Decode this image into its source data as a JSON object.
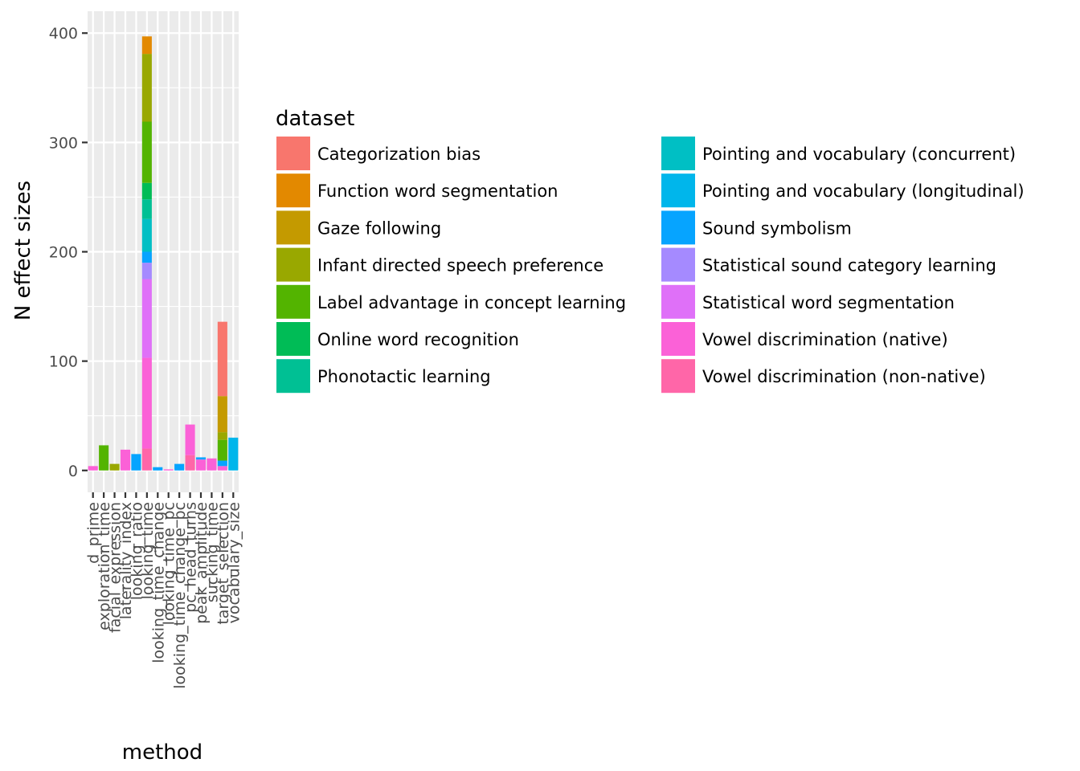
{
  "chart_data": {
    "type": "bar",
    "stacked": true,
    "xlabel": "method",
    "ylabel": "N effect sizes",
    "ylim": [
      -20,
      420
    ],
    "yticks": [
      0,
      100,
      200,
      300,
      400
    ],
    "grid": true,
    "legend_title": "dataset",
    "legend_position": "right",
    "categories": [
      "d_prime",
      "exploration_time",
      "facial_expression",
      "laterality_index",
      "looking_ratio",
      "looking_time",
      "looking_time_change",
      "looking_time_pc",
      "looking_time_change_pc",
      "pc_head_turns",
      "peak_amplitude",
      "sucking_time",
      "target_selection",
      "vocabulary_size"
    ],
    "series": [
      {
        "name": "Categorization bias",
        "color": "#F8766D",
        "values": [
          0,
          0,
          0,
          0,
          0,
          0,
          0,
          0,
          0,
          0,
          0,
          0,
          68,
          0
        ]
      },
      {
        "name": "Function word segmentation",
        "color": "#E38900",
        "values": [
          0,
          0,
          0,
          0,
          0,
          16,
          0,
          0,
          0,
          0,
          0,
          0,
          0,
          0
        ]
      },
      {
        "name": "Gaze following",
        "color": "#C49A00",
        "values": [
          0,
          0,
          0,
          0,
          0,
          0,
          0,
          0,
          0,
          0,
          0,
          0,
          33,
          0
        ]
      },
      {
        "name": "Infant directed speech preference",
        "color": "#99A800",
        "values": [
          0,
          0,
          6,
          0,
          0,
          62,
          0,
          0,
          0,
          0,
          0,
          0,
          7,
          0
        ]
      },
      {
        "name": "Label advantage in concept learning",
        "color": "#53B400",
        "values": [
          0,
          23,
          0,
          0,
          0,
          56,
          0,
          0,
          0,
          0,
          0,
          0,
          19,
          0
        ]
      },
      {
        "name": "Online word recognition",
        "color": "#00BC56",
        "values": [
          0,
          0,
          0,
          0,
          0,
          15,
          0,
          0,
          0,
          0,
          0,
          0,
          0,
          0
        ]
      },
      {
        "name": "Phonotactic learning",
        "color": "#00C094",
        "values": [
          0,
          0,
          0,
          0,
          0,
          18,
          0,
          0,
          0,
          0,
          0,
          0,
          0,
          0
        ]
      },
      {
        "name": "Pointing and vocabulary (concurrent)",
        "color": "#00BFC4",
        "values": [
          0,
          0,
          0,
          0,
          0,
          30,
          0,
          0,
          0,
          0,
          0,
          0,
          0,
          0
        ]
      },
      {
        "name": "Pointing and vocabulary (longitudinal)",
        "color": "#00B6EB",
        "values": [
          0,
          0,
          0,
          0,
          0,
          0,
          0,
          0,
          0,
          0,
          0,
          0,
          0,
          30
        ]
      },
      {
        "name": "Sound symbolism",
        "color": "#06A4FF",
        "values": [
          0,
          0,
          0,
          0,
          15,
          10,
          3,
          0,
          6,
          0,
          2,
          0,
          5,
          0
        ]
      },
      {
        "name": "Statistical sound category learning",
        "color": "#A58AFF",
        "values": [
          0,
          0,
          0,
          0,
          0,
          15,
          0,
          0,
          0,
          0,
          0,
          0,
          0,
          0
        ]
      },
      {
        "name": "Statistical word segmentation",
        "color": "#DF70F8",
        "values": [
          0,
          0,
          0,
          0,
          0,
          72,
          0,
          0,
          0,
          0,
          0,
          0,
          0,
          0
        ]
      },
      {
        "name": "Vowel discrimination (native)",
        "color": "#FB61D7",
        "values": [
          4,
          0,
          0,
          19,
          0,
          83,
          0,
          1,
          0,
          28,
          10,
          11,
          4,
          0
        ]
      },
      {
        "name": "Vowel discrimination (non-native)",
        "color": "#FF66A8",
        "values": [
          0,
          0,
          0,
          0,
          0,
          20,
          0,
          0,
          0,
          14,
          0,
          0,
          0,
          0
        ]
      }
    ]
  }
}
